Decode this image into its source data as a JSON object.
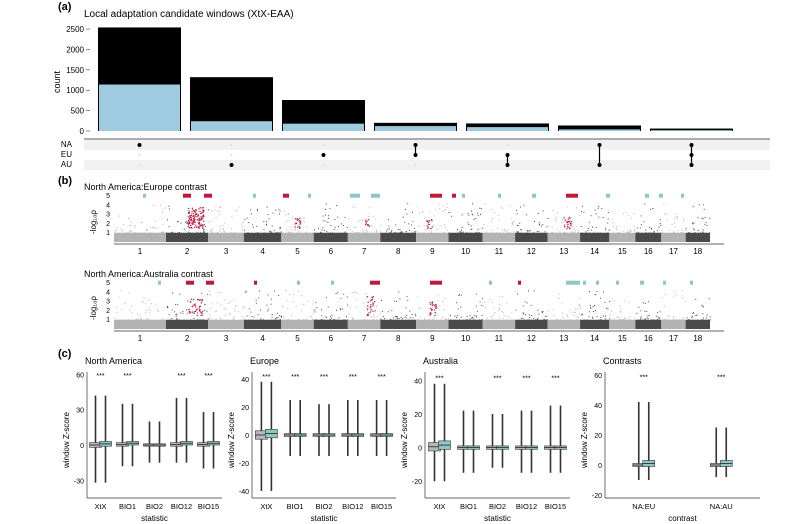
{
  "colors": {
    "black": "#000000",
    "lightblue": "#9fcbe1",
    "grey": "#b3b3b3",
    "darkgrey": "#4a4a4a",
    "red": "#c0183a",
    "teal": "#8fc7c4",
    "box_grey": "#b8b8b8"
  },
  "panel_a": {
    "label": "(a)",
    "title": "Local adaptation candidate windows (XtX-EAA)",
    "ylabel": "count",
    "yticks": [
      "0",
      "500",
      "1000",
      "1500",
      "2000",
      "2500"
    ],
    "set_labels": [
      "NA",
      "EU",
      "AU"
    ]
  },
  "panel_b": {
    "label": "(b)",
    "contrast1": "North America:Europe contrast",
    "contrast2": "North America:Australia contrast",
    "ylabel": "-log₁₀ρ",
    "yticks": [
      "1",
      "2",
      "3",
      "4",
      "5"
    ],
    "chromosomes": [
      "1",
      "2",
      "3",
      "4",
      "5",
      "6",
      "7",
      "8",
      "9",
      "10",
      "11",
      "12",
      "13",
      "14",
      "15",
      "16",
      "17",
      "18"
    ]
  },
  "panel_c": {
    "label": "(c)",
    "ylabel": "window Z-score",
    "significance": "***",
    "sub1": {
      "title": "North America",
      "yticks": [
        "60",
        "30",
        "0",
        "-30"
      ],
      "xticks": [
        "XtX",
        "BIO1",
        "BIO2",
        "BIO12",
        "BIO15"
      ],
      "xlabel": "statistic"
    },
    "sub2": {
      "title": "Europe",
      "yticks": [
        "40",
        "20",
        "0",
        "-20",
        "-40"
      ],
      "xticks": [
        "XtX",
        "BIO1",
        "BIO2",
        "BIO12",
        "BIO15"
      ],
      "xlabel": "statistic"
    },
    "sub3": {
      "title": "Australia",
      "yticks": [
        "40",
        "20",
        "0",
        "-20"
      ],
      "xticks": [
        "XtX",
        "BIO1",
        "BIO2",
        "BIO12",
        "BIO15"
      ],
      "xlabel": "statistic"
    },
    "sub4": {
      "title": "Contrasts",
      "yticks": [
        "60",
        "40",
        "20",
        "0",
        "-20"
      ],
      "xticks": [
        "NA:EU",
        "NA:AU"
      ],
      "xlabel": "contrast"
    }
  },
  "chart_data": [
    {
      "type": "bar",
      "title": "Local adaptation candidate windows (XtX-EAA)",
      "ylabel": "count",
      "ylim": [
        0,
        2600
      ],
      "categories": [
        "NA",
        "AU",
        "EU",
        "NA+EU",
        "EU+AU",
        "NA+AU",
        "NA+EU+AU"
      ],
      "series": [
        {
          "values": [
            2540,
            1320,
            760,
            200,
            185,
            135,
            60
          ]
        },
        {
          "values": [
            1140,
            240,
            180,
            120,
            95,
            40,
            20
          ]
        }
      ],
      "grid": false
    },
    {
      "type": "scatter",
      "title": "North America:Europe contrast",
      "ylabel": "-log₁₀ρ",
      "ylim": [
        0,
        5
      ],
      "x": [
        "1",
        "2",
        "3",
        "4",
        "5",
        "6",
        "7",
        "8",
        "9",
        "10",
        "11",
        "12",
        "13",
        "14",
        "15",
        "16",
        "17",
        "18"
      ]
    },
    {
      "type": "scatter",
      "title": "North America:Australia contrast",
      "ylabel": "-log₁₀ρ",
      "ylim": [
        0,
        5
      ],
      "x": [
        "1",
        "2",
        "3",
        "4",
        "5",
        "6",
        "7",
        "8",
        "9",
        "10",
        "11",
        "12",
        "13",
        "14",
        "15",
        "16",
        "17",
        "18"
      ]
    }
  ]
}
